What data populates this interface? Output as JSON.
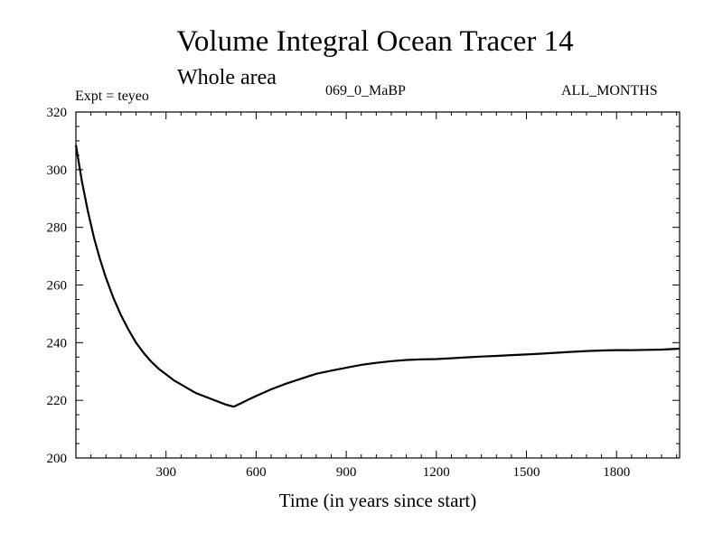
{
  "chart_data": {
    "type": "line",
    "title": "Volume Integral Ocean Tracer 14",
    "subtitle": "Whole area",
    "expt_label": "Expt = teyeo",
    "run_label": "069_0_MaBP",
    "months_label": "ALL_MONTHS",
    "xlabel": "Time (in years since start)",
    "ylabel": "",
    "xlim": [
      0,
      2010
    ],
    "ylim": [
      200,
      320
    ],
    "x_ticks": [
      300,
      600,
      900,
      1200,
      1500,
      1800
    ],
    "y_ticks": [
      200,
      220,
      240,
      260,
      280,
      300,
      320
    ],
    "grid": false,
    "series": [
      {
        "name": "Tracer 14",
        "x": [
          0,
          20,
          40,
          60,
          80,
          100,
          125,
          150,
          175,
          200,
          225,
          250,
          275,
          300,
          325,
          350,
          375,
          400,
          425,
          450,
          475,
          500,
          525,
          550,
          575,
          600,
          650,
          700,
          750,
          800,
          850,
          900,
          950,
          1000,
          1050,
          1100,
          1150,
          1200,
          1250,
          1300,
          1350,
          1400,
          1450,
          1500,
          1550,
          1600,
          1650,
          1700,
          1750,
          1800,
          1850,
          1900,
          1950,
          2010
        ],
        "y": [
          308.5,
          296,
          285.5,
          276.5,
          269,
          262.5,
          255.5,
          249.5,
          244.5,
          240,
          236.5,
          233.5,
          231,
          229,
          227,
          225.5,
          224,
          222.5,
          221.5,
          220.5,
          219.5,
          218.5,
          217.8,
          219,
          220.3,
          221.5,
          223.8,
          225.8,
          227.5,
          229.2,
          230.3,
          231.3,
          232.3,
          233,
          233.6,
          234,
          234.2,
          234.3,
          234.6,
          234.9,
          235.2,
          235.4,
          235.7,
          235.9,
          236.2,
          236.5,
          236.8,
          237.1,
          237.3,
          237.4,
          237.4,
          237.5,
          237.6,
          237.9
        ]
      }
    ]
  }
}
